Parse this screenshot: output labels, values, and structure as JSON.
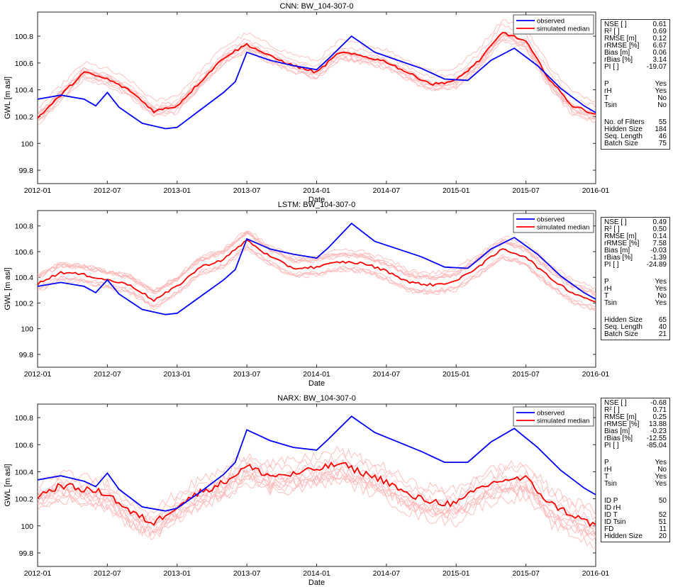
{
  "colors": {
    "observed": "#0000ff",
    "simulated_median": "#ff0000",
    "ensemble": "#ffb3b3",
    "axis": "#262626"
  },
  "chart_data": [
    {
      "type": "line",
      "title": "CNN: BW_104-307-0",
      "xlabel": "Date",
      "ylabel": "GWL [m asl]",
      "x_ticks": [
        "2012-01",
        "2012-07",
        "2013-01",
        "2013-07",
        "2014-01",
        "2014-07",
        "2015-01",
        "2015-07",
        "2016-01"
      ],
      "y_ticks": [
        "99.8",
        "100",
        "100.2",
        "100.4",
        "100.6",
        "100.8"
      ],
      "ylim": [
        99.7,
        100.98
      ],
      "legend": [
        "observed",
        "simulated median"
      ],
      "legend_position": "top-right",
      "series": [
        {
          "name": "observed",
          "x": [
            "2012-01",
            "2012-03",
            "2012-05",
            "2012-06",
            "2012-07",
            "2012-08",
            "2012-10",
            "2012-12",
            "2013-01",
            "2013-03",
            "2013-05",
            "2013-06",
            "2013-07",
            "2013-09",
            "2013-11",
            "2014-01",
            "2014-02",
            "2014-04",
            "2014-06",
            "2014-08",
            "2014-10",
            "2014-12",
            "2015-02",
            "2015-04",
            "2015-06",
            "2015-08",
            "2015-10",
            "2015-12",
            "2016-01"
          ],
          "values": [
            100.33,
            100.36,
            100.33,
            100.28,
            100.38,
            100.27,
            100.15,
            100.11,
            100.12,
            100.25,
            100.38,
            100.46,
            100.68,
            100.62,
            100.58,
            100.55,
            100.63,
            100.8,
            100.68,
            100.62,
            100.56,
            100.48,
            100.47,
            100.62,
            100.71,
            100.58,
            100.41,
            100.28,
            100.23
          ]
        },
        {
          "name": "simulated median",
          "x": [
            "2012-01",
            "2012-03",
            "2012-05",
            "2012-07",
            "2012-09",
            "2012-11",
            "2013-01",
            "2013-03",
            "2013-05",
            "2013-07",
            "2013-09",
            "2013-11",
            "2014-01",
            "2014-03",
            "2014-05",
            "2014-07",
            "2014-09",
            "2014-11",
            "2015-01",
            "2015-03",
            "2015-05",
            "2015-07",
            "2015-09",
            "2015-11",
            "2016-01"
          ],
          "values": [
            100.19,
            100.36,
            100.53,
            100.48,
            100.39,
            100.24,
            100.28,
            100.46,
            100.64,
            100.74,
            100.65,
            100.58,
            100.53,
            100.68,
            100.65,
            100.61,
            100.52,
            100.44,
            100.47,
            100.62,
            100.83,
            100.76,
            100.48,
            100.28,
            100.22
          ]
        }
      ],
      "stats": [
        {
          "label": "NSE [ ]",
          "value": "0.61"
        },
        {
          "label": "R² [ ]",
          "value": "0.69"
        },
        {
          "label": "RMSE [m]",
          "value": "0.12"
        },
        {
          "label": "rRMSE [%]",
          "value": "6.67"
        },
        {
          "label": "Bias [m]",
          "value": "0.06"
        },
        {
          "label": "rBias [%]",
          "value": "3.14"
        },
        {
          "label": "PI [ ]",
          "value": "-19.07"
        },
        {
          "gap": true
        },
        {
          "label": "P",
          "value": "Yes"
        },
        {
          "label": "rH",
          "value": "Yes"
        },
        {
          "label": "T",
          "value": "No"
        },
        {
          "label": "Tsin",
          "value": "No"
        },
        {
          "gap": true
        },
        {
          "label": "No. of Filters",
          "value": "55"
        },
        {
          "label": "Hidden Size",
          "value": "184"
        },
        {
          "label": "Seq. Length",
          "value": "46"
        },
        {
          "label": "Batch Size",
          "value": "75"
        }
      ]
    },
    {
      "type": "line",
      "title": "LSTM: BW_104-307-0",
      "xlabel": "Date",
      "ylabel": "GWL [m asl]",
      "x_ticks": [
        "2012-01",
        "2012-07",
        "2013-01",
        "2013-07",
        "2014-01",
        "2014-07",
        "2015-01",
        "2015-07",
        "2016-01"
      ],
      "y_ticks": [
        "99.8",
        "100",
        "100.2",
        "100.4",
        "100.6",
        "100.8"
      ],
      "ylim": [
        99.7,
        100.92
      ],
      "legend": [
        "observed",
        "simulated median"
      ],
      "legend_position": "top-right",
      "series": [
        {
          "name": "observed",
          "x": [
            "2012-01",
            "2012-03",
            "2012-05",
            "2012-06",
            "2012-07",
            "2012-08",
            "2012-10",
            "2012-12",
            "2013-01",
            "2013-03",
            "2013-05",
            "2013-06",
            "2013-07",
            "2013-09",
            "2013-11",
            "2014-01",
            "2014-02",
            "2014-04",
            "2014-06",
            "2014-08",
            "2014-10",
            "2014-12",
            "2015-02",
            "2015-04",
            "2015-06",
            "2015-08",
            "2015-10",
            "2015-12",
            "2016-01"
          ],
          "values": [
            100.33,
            100.36,
            100.33,
            100.28,
            100.38,
            100.27,
            100.15,
            100.11,
            100.12,
            100.25,
            100.38,
            100.46,
            100.7,
            100.62,
            100.58,
            100.55,
            100.63,
            100.82,
            100.68,
            100.62,
            100.56,
            100.48,
            100.47,
            100.62,
            100.71,
            100.58,
            100.41,
            100.28,
            100.23
          ]
        },
        {
          "name": "simulated median",
          "x": [
            "2012-01",
            "2012-03",
            "2012-05",
            "2012-07",
            "2012-09",
            "2012-11",
            "2013-01",
            "2013-03",
            "2013-05",
            "2013-07",
            "2013-09",
            "2013-11",
            "2014-01",
            "2014-03",
            "2014-05",
            "2014-07",
            "2014-09",
            "2014-11",
            "2015-01",
            "2015-03",
            "2015-05",
            "2015-07",
            "2015-09",
            "2015-11",
            "2016-01"
          ],
          "values": [
            100.35,
            100.44,
            100.42,
            100.38,
            100.34,
            100.22,
            100.33,
            100.48,
            100.54,
            100.69,
            100.56,
            100.47,
            100.48,
            100.52,
            100.51,
            100.45,
            100.36,
            100.34,
            100.37,
            100.49,
            100.62,
            100.56,
            100.4,
            100.28,
            100.21
          ]
        }
      ],
      "stats": [
        {
          "label": "NSE [ ]",
          "value": "0.49"
        },
        {
          "label": "R² [ ]",
          "value": "0.50"
        },
        {
          "label": "RMSE [m]",
          "value": "0.14"
        },
        {
          "label": "rRMSE [%]",
          "value": "7.58"
        },
        {
          "label": "Bias [m]",
          "value": "-0.03"
        },
        {
          "label": "rBias [%]",
          "value": "-1.39"
        },
        {
          "label": "PI [ ]",
          "value": "-24.89"
        },
        {
          "gap": true
        },
        {
          "label": "P",
          "value": "Yes"
        },
        {
          "label": "rH",
          "value": "Yes"
        },
        {
          "label": "T",
          "value": "No"
        },
        {
          "label": "Tsin",
          "value": "Yes"
        },
        {
          "gap": true
        },
        {
          "label": "Hidden Size",
          "value": "65"
        },
        {
          "label": "Seq. Length",
          "value": "40"
        },
        {
          "label": "Batch Size",
          "value": "21"
        }
      ]
    },
    {
      "type": "line",
      "title": "NARX: BW_104-307-0",
      "xlabel": "Date",
      "ylabel": "GWL [m asl]",
      "x_ticks": [
        "2012-01",
        "2012-07",
        "2013-01",
        "2013-07",
        "2014-01",
        "2014-07",
        "2015-01",
        "2015-07",
        "2016-01"
      ],
      "y_ticks": [
        "99.8",
        "100",
        "100.2",
        "100.4",
        "100.6",
        "100.8"
      ],
      "ylim": [
        99.7,
        100.9
      ],
      "legend": [
        "observed",
        "simulated median"
      ],
      "legend_position": "top-right",
      "series": [
        {
          "name": "observed",
          "x": [
            "2012-01",
            "2012-03",
            "2012-05",
            "2012-06",
            "2012-07",
            "2012-08",
            "2012-10",
            "2012-12",
            "2013-01",
            "2013-03",
            "2013-05",
            "2013-06",
            "2013-07",
            "2013-09",
            "2013-11",
            "2014-01",
            "2014-02",
            "2014-04",
            "2014-06",
            "2014-08",
            "2014-10",
            "2014-12",
            "2015-02",
            "2015-04",
            "2015-06",
            "2015-08",
            "2015-10",
            "2015-12",
            "2016-01"
          ],
          "values": [
            100.34,
            100.37,
            100.33,
            100.29,
            100.39,
            100.27,
            100.14,
            100.11,
            100.13,
            100.25,
            100.38,
            100.47,
            100.71,
            100.63,
            100.58,
            100.56,
            100.64,
            100.81,
            100.69,
            100.62,
            100.55,
            100.47,
            100.47,
            100.62,
            100.72,
            100.58,
            100.41,
            100.28,
            100.23
          ]
        },
        {
          "name": "simulated median",
          "x": [
            "2012-01",
            "2012-03",
            "2012-05",
            "2012-07",
            "2012-09",
            "2012-11",
            "2013-01",
            "2013-03",
            "2013-05",
            "2013-07",
            "2013-09",
            "2013-11",
            "2014-01",
            "2014-03",
            "2014-05",
            "2014-07",
            "2014-09",
            "2014-11",
            "2015-01",
            "2015-03",
            "2015-05",
            "2015-07",
            "2015-09",
            "2015-11",
            "2016-01"
          ],
          "values": [
            100.22,
            100.3,
            100.27,
            100.24,
            100.1,
            100.02,
            100.15,
            100.25,
            100.32,
            100.44,
            100.37,
            100.38,
            100.42,
            100.46,
            100.39,
            100.33,
            100.22,
            100.18,
            100.16,
            100.28,
            100.34,
            100.35,
            100.17,
            100.08,
            100.0
          ]
        }
      ],
      "stats": [
        {
          "label": "NSE [ ]",
          "value": "-0.68"
        },
        {
          "label": "R² [ ]",
          "value": "0.71"
        },
        {
          "label": "RMSE [m]",
          "value": "0.25"
        },
        {
          "label": "rRMSE [%]",
          "value": "13.88"
        },
        {
          "label": "Bias [m]",
          "value": "-0.23"
        },
        {
          "label": "rBias [%]",
          "value": "-12.55"
        },
        {
          "label": "PI [ ]",
          "value": "-85.04"
        },
        {
          "gap": true
        },
        {
          "label": "P",
          "value": "Yes"
        },
        {
          "label": "rH",
          "value": "No"
        },
        {
          "label": "T",
          "value": "Yes"
        },
        {
          "label": "Tsin",
          "value": "Yes"
        },
        {
          "gap": true
        },
        {
          "label": "ID P",
          "value": "50"
        },
        {
          "label": "ID rH",
          "value": ""
        },
        {
          "label": "ID T",
          "value": "52"
        },
        {
          "label": "ID Tsin",
          "value": "51"
        },
        {
          "label": "FD",
          "value": "11"
        },
        {
          "label": "Hidden Size",
          "value": "20"
        }
      ]
    }
  ]
}
